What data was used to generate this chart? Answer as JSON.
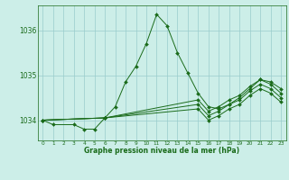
{
  "title": "Graphe pression niveau de la mer (hPa)",
  "background_color": "#cceee8",
  "grid_color": "#99cccc",
  "line_color": "#1a6b1a",
  "hours": [
    0,
    1,
    2,
    3,
    4,
    5,
    6,
    7,
    8,
    9,
    10,
    11,
    12,
    13,
    14,
    15,
    16,
    17,
    18,
    19,
    20,
    21,
    22,
    23
  ],
  "series": [
    [
      1034.0,
      1033.9,
      null,
      1033.9,
      1033.8,
      1033.8,
      1034.05,
      1034.3,
      1034.85,
      1035.2,
      1035.7,
      1036.35,
      1036.1,
      1035.5,
      1035.05,
      1034.6,
      1034.3,
      1034.25,
      1034.35,
      1034.5,
      1034.7,
      1034.9,
      1034.85,
      1034.7
    ],
    [
      1034.0,
      null,
      null,
      null,
      null,
      null,
      1034.05,
      null,
      null,
      null,
      null,
      null,
      null,
      null,
      null,
      1034.45,
      1034.2,
      1034.3,
      1034.45,
      1034.55,
      1034.75,
      1034.9,
      1034.8,
      1034.6
    ],
    [
      1034.0,
      null,
      null,
      null,
      null,
      null,
      1034.05,
      null,
      null,
      null,
      null,
      null,
      null,
      null,
      null,
      1034.35,
      1034.1,
      1034.2,
      1034.35,
      1034.45,
      1034.65,
      1034.8,
      1034.7,
      1034.5
    ],
    [
      1034.0,
      null,
      null,
      null,
      null,
      null,
      1034.05,
      null,
      null,
      null,
      null,
      null,
      null,
      null,
      null,
      1034.25,
      1034.0,
      1034.1,
      1034.25,
      1034.35,
      1034.55,
      1034.7,
      1034.6,
      1034.4
    ]
  ],
  "ylim": [
    1033.55,
    1036.55
  ],
  "yticks": [
    1034.0,
    1035.0,
    1036.0
  ],
  "xlim": [
    -0.5,
    23.5
  ]
}
